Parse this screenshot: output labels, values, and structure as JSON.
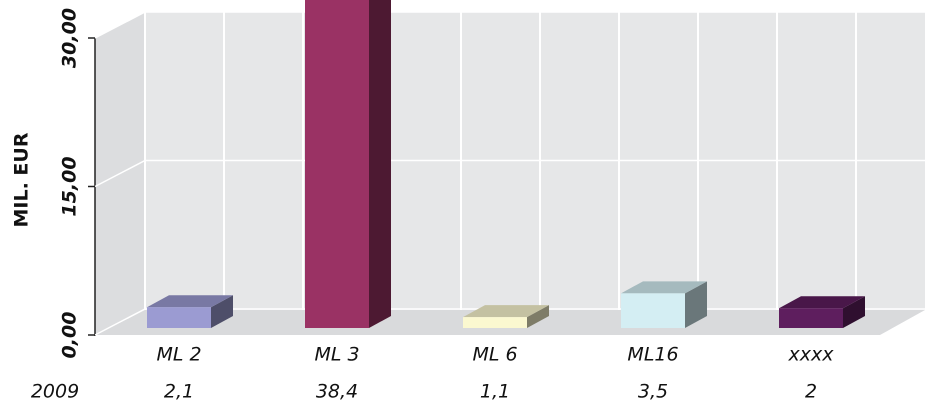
{
  "chart_data": {
    "type": "bar3d",
    "ylabel": "MIL. EUR",
    "row_label": "2009",
    "categories": [
      "ML 2",
      "ML 3",
      "ML 6",
      "ML16",
      "xxxx"
    ],
    "values": [
      2.1,
      38.4,
      1.1,
      3.5,
      2
    ],
    "value_labels": [
      "2,1",
      "38,4",
      "1,1",
      "3,5",
      "2"
    ],
    "colors": [
      "#9b9bd2",
      "#9a3264",
      "#fbf8d0",
      "#d4eef3",
      "#5e1e5e"
    ],
    "ylim": [
      0,
      31
    ],
    "yticks": [
      {
        "value": 0,
        "label": "0,00"
      },
      {
        "value": 15,
        "label": "15,00"
      },
      {
        "value": 30,
        "label": "30,00"
      }
    ],
    "grid": true
  }
}
